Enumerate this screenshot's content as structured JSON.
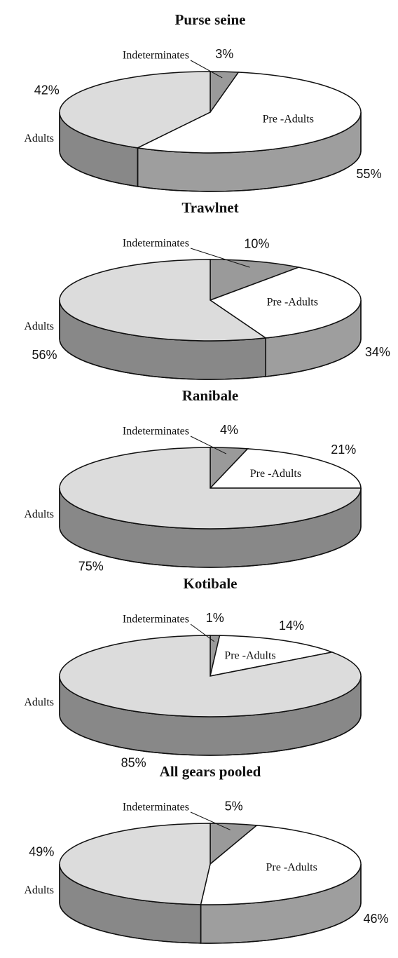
{
  "chart_data": [
    {
      "type": "pie",
      "title": "Purse seine",
      "categories": [
        "Indeterminates",
        "Pre -Adults",
        "Adults"
      ],
      "values": [
        3,
        55,
        42
      ],
      "value_labels": [
        "3%",
        "55%",
        "42%"
      ],
      "colors": [
        "#9a9a9a",
        "#ffffff",
        "#dcdcdc"
      ]
    },
    {
      "type": "pie",
      "title": "Trawlnet",
      "categories": [
        "Indeterminates",
        "Pre -Adults",
        "Adults"
      ],
      "values": [
        10,
        34,
        56
      ],
      "value_labels": [
        "10%",
        "34%",
        "56%"
      ],
      "colors": [
        "#9a9a9a",
        "#ffffff",
        "#dcdcdc"
      ]
    },
    {
      "type": "pie",
      "title": "Ranibale",
      "categories": [
        "Indeterminates",
        "Pre -Adults",
        "Adults"
      ],
      "values": [
        4,
        21,
        75
      ],
      "value_labels": [
        "4%",
        "21%",
        "75%"
      ],
      "colors": [
        "#9a9a9a",
        "#ffffff",
        "#dcdcdc"
      ]
    },
    {
      "type": "pie",
      "title": "Kotibale",
      "categories": [
        "Indeterminates",
        "Pre -Adults",
        "Adults"
      ],
      "values": [
        1,
        14,
        85
      ],
      "value_labels": [
        "1%",
        "14%",
        "85%"
      ],
      "colors": [
        "#9a9a9a",
        "#ffffff",
        "#dcdcdc"
      ]
    },
    {
      "type": "pie",
      "title": "All gears pooled",
      "categories": [
        "Indeterminates",
        "Pre -Adults",
        "Adults"
      ],
      "values": [
        5,
        46,
        49
      ],
      "value_labels": [
        "5%",
        "46%",
        "49%"
      ],
      "colors": [
        "#9a9a9a",
        "#ffffff",
        "#dcdcdc"
      ]
    }
  ]
}
